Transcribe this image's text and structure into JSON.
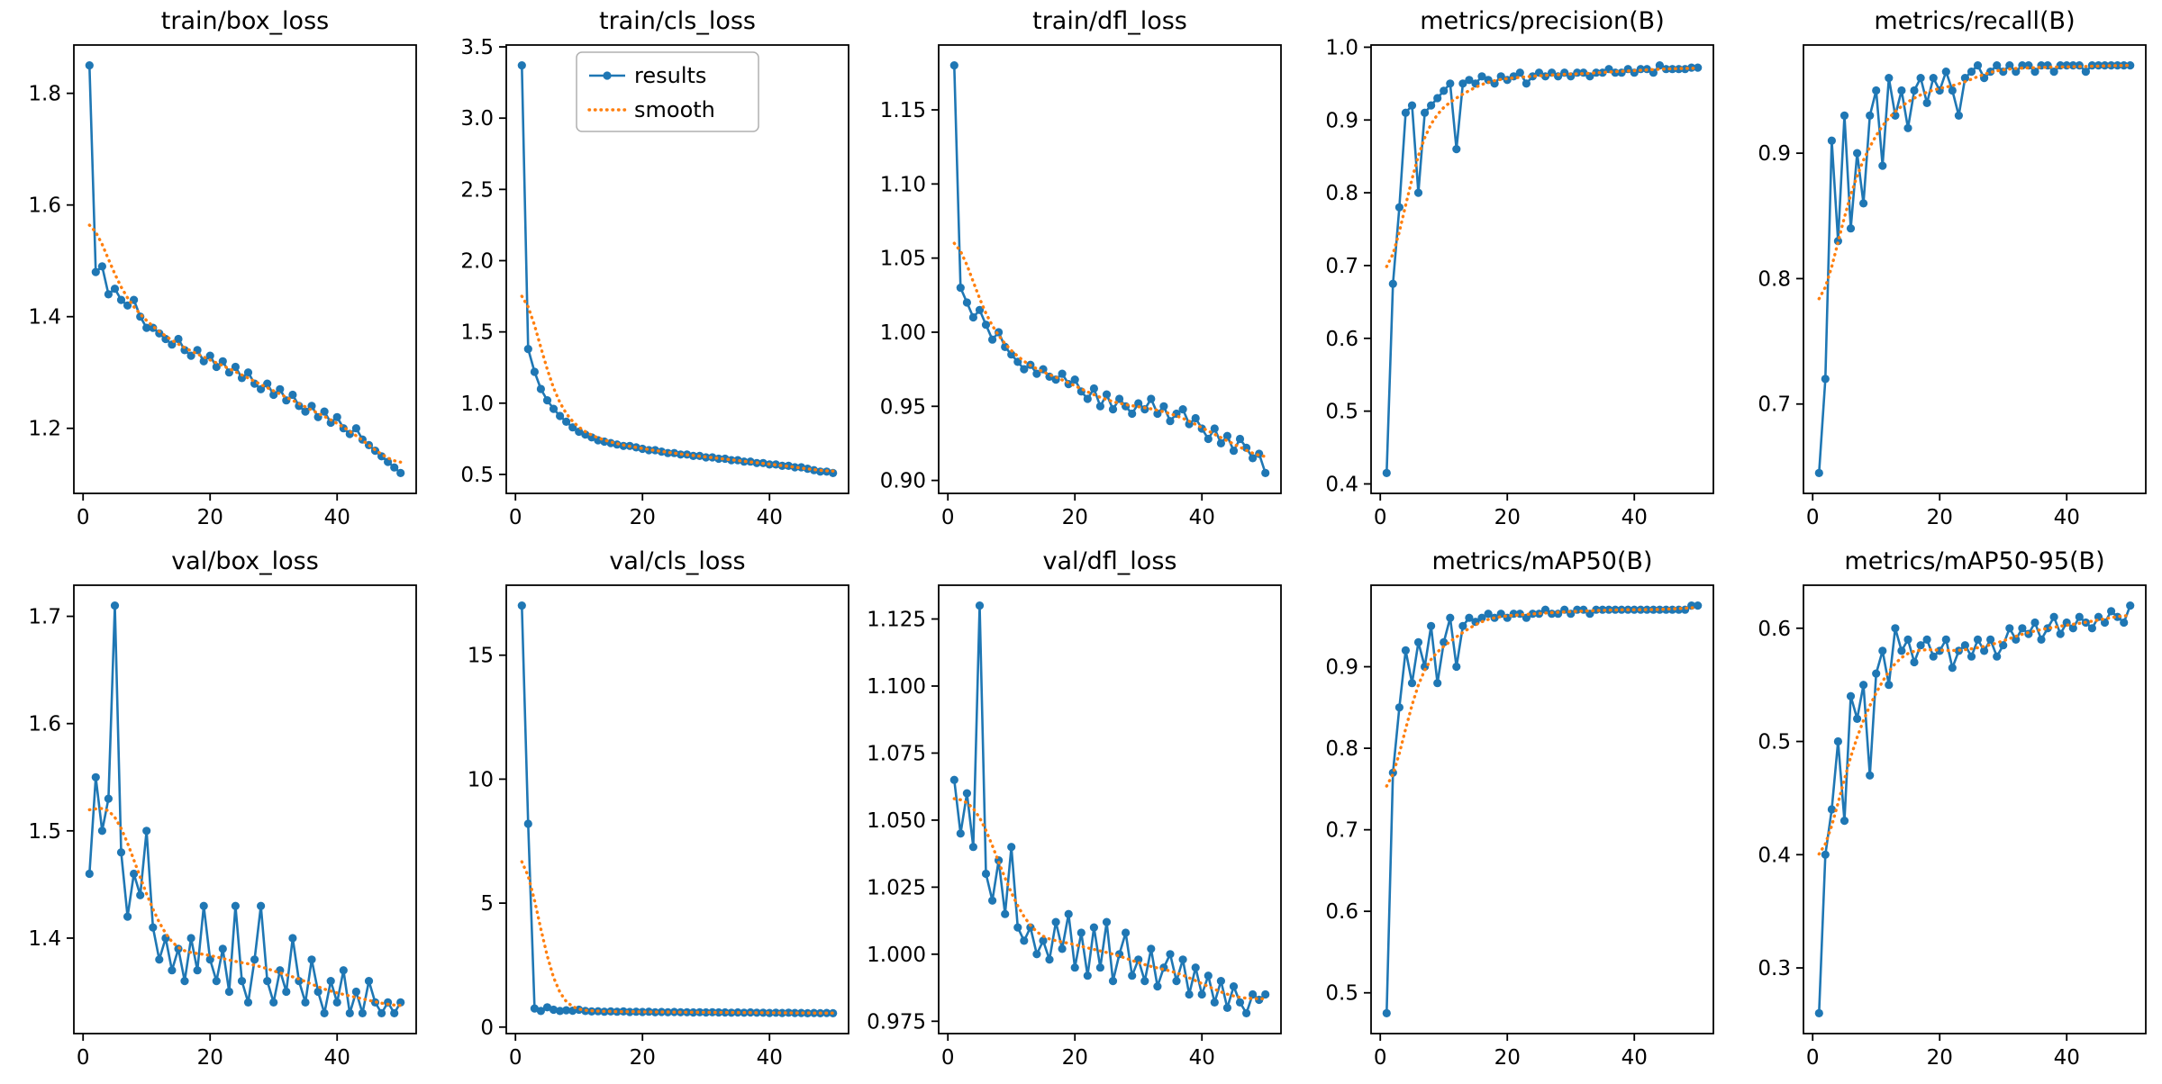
{
  "figure": {
    "background": "#ffffff",
    "grid": {
      "rows": 2,
      "cols": 5
    },
    "colors": {
      "results": "#1f77b4",
      "smooth": "#ff7f0e",
      "spine": "#000000",
      "legend_border": "#b0b0b0"
    },
    "legend_labels": [
      "results",
      "smooth"
    ],
    "smoothing": "gaussian sigma=3 smoothing of results series"
  },
  "chart_data": [
    {
      "type": "line",
      "title": "train/box_loss",
      "legend": false,
      "x": {
        "start": 1,
        "end": 50,
        "ticks": [
          0,
          20,
          40
        ],
        "tick_labels": [
          "0",
          "20",
          "40"
        ]
      },
      "yticks": [
        1.2,
        1.4,
        1.6,
        1.8
      ],
      "ytick_labels": [
        "1.2",
        "1.4",
        "1.6",
        "1.8"
      ],
      "series": [
        {
          "name": "results",
          "style": "solid-with-markers",
          "values": [
            1.85,
            1.48,
            1.49,
            1.44,
            1.45,
            1.43,
            1.42,
            1.43,
            1.4,
            1.38,
            1.38,
            1.37,
            1.36,
            1.35,
            1.36,
            1.34,
            1.33,
            1.34,
            1.32,
            1.33,
            1.31,
            1.32,
            1.3,
            1.31,
            1.29,
            1.3,
            1.28,
            1.27,
            1.28,
            1.26,
            1.27,
            1.25,
            1.26,
            1.24,
            1.23,
            1.24,
            1.22,
            1.23,
            1.21,
            1.22,
            1.2,
            1.19,
            1.2,
            1.18,
            1.17,
            1.16,
            1.15,
            1.14,
            1.13,
            1.12
          ]
        },
        {
          "name": "smooth",
          "style": "dotted",
          "derived": "gaussian smoothing of results"
        }
      ]
    },
    {
      "type": "line",
      "title": "train/cls_loss",
      "legend": true,
      "x": {
        "start": 1,
        "end": 50,
        "ticks": [
          0,
          20,
          40
        ],
        "tick_labels": [
          "0",
          "20",
          "40"
        ]
      },
      "yticks": [
        0.5,
        1.0,
        1.5,
        2.0,
        2.5,
        3.0,
        3.5
      ],
      "ytick_labels": [
        "0.5",
        "1.0",
        "1.5",
        "2.0",
        "2.5",
        "3.0",
        "3.5"
      ],
      "series": [
        {
          "name": "results",
          "style": "solid-with-markers",
          "values": [
            3.37,
            1.38,
            1.22,
            1.1,
            1.02,
            0.96,
            0.91,
            0.87,
            0.83,
            0.8,
            0.78,
            0.76,
            0.74,
            0.73,
            0.72,
            0.71,
            0.7,
            0.7,
            0.69,
            0.68,
            0.67,
            0.67,
            0.66,
            0.65,
            0.65,
            0.64,
            0.64,
            0.63,
            0.63,
            0.62,
            0.62,
            0.61,
            0.61,
            0.6,
            0.6,
            0.59,
            0.59,
            0.58,
            0.58,
            0.57,
            0.57,
            0.56,
            0.56,
            0.55,
            0.55,
            0.54,
            0.53,
            0.52,
            0.52,
            0.51
          ]
        },
        {
          "name": "smooth",
          "style": "dotted",
          "derived": "gaussian smoothing of results"
        }
      ]
    },
    {
      "type": "line",
      "title": "train/dfl_loss",
      "legend": false,
      "x": {
        "start": 1,
        "end": 50,
        "ticks": [
          0,
          20,
          40
        ],
        "tick_labels": [
          "0",
          "20",
          "40"
        ]
      },
      "yticks": [
        0.9,
        0.95,
        1.0,
        1.05,
        1.1,
        1.15
      ],
      "ytick_labels": [
        "0.90",
        "0.95",
        "1.00",
        "1.05",
        "1.10",
        "1.15"
      ],
      "series": [
        {
          "name": "results",
          "style": "solid-with-markers",
          "values": [
            1.18,
            1.03,
            1.02,
            1.01,
            1.015,
            1.005,
            0.995,
            1.0,
            0.99,
            0.985,
            0.98,
            0.975,
            0.978,
            0.972,
            0.975,
            0.97,
            0.968,
            0.972,
            0.965,
            0.968,
            0.96,
            0.955,
            0.962,
            0.95,
            0.958,
            0.948,
            0.955,
            0.95,
            0.945,
            0.952,
            0.948,
            0.955,
            0.945,
            0.95,
            0.94,
            0.945,
            0.948,
            0.938,
            0.942,
            0.935,
            0.928,
            0.935,
            0.925,
            0.93,
            0.92,
            0.928,
            0.922,
            0.915,
            0.918,
            0.905
          ]
        },
        {
          "name": "smooth",
          "style": "dotted",
          "derived": "gaussian smoothing of results"
        }
      ]
    },
    {
      "type": "line",
      "title": "metrics/precision(B)",
      "legend": false,
      "x": {
        "start": 1,
        "end": 50,
        "ticks": [
          0,
          20,
          40
        ],
        "tick_labels": [
          "0",
          "20",
          "40"
        ]
      },
      "yticks": [
        0.4,
        0.5,
        0.6,
        0.7,
        0.8,
        0.9,
        1.0
      ],
      "ytick_labels": [
        "0.4",
        "0.5",
        "0.6",
        "0.7",
        "0.8",
        "0.9",
        "1.0"
      ],
      "series": [
        {
          "name": "results",
          "style": "solid-with-markers",
          "values": [
            0.415,
            0.675,
            0.78,
            0.91,
            0.92,
            0.8,
            0.91,
            0.92,
            0.93,
            0.94,
            0.95,
            0.86,
            0.95,
            0.955,
            0.95,
            0.96,
            0.955,
            0.95,
            0.96,
            0.955,
            0.96,
            0.965,
            0.95,
            0.96,
            0.965,
            0.96,
            0.965,
            0.96,
            0.965,
            0.96,
            0.965,
            0.965,
            0.96,
            0.965,
            0.965,
            0.97,
            0.965,
            0.965,
            0.97,
            0.965,
            0.97,
            0.97,
            0.965,
            0.975,
            0.97,
            0.97,
            0.97,
            0.97,
            0.972,
            0.972
          ]
        },
        {
          "name": "smooth",
          "style": "dotted",
          "derived": "gaussian smoothing of results"
        }
      ]
    },
    {
      "type": "line",
      "title": "metrics/recall(B)",
      "legend": false,
      "x": {
        "start": 1,
        "end": 50,
        "ticks": [
          0,
          20,
          40
        ],
        "tick_labels": [
          "0",
          "20",
          "40"
        ]
      },
      "yticks": [
        0.7,
        0.8,
        0.9
      ],
      "ytick_labels": [
        "0.7",
        "0.8",
        "0.9"
      ],
      "series": [
        {
          "name": "results",
          "style": "solid-with-markers",
          "values": [
            0.645,
            0.72,
            0.91,
            0.83,
            0.93,
            0.84,
            0.9,
            0.86,
            0.93,
            0.95,
            0.89,
            0.96,
            0.93,
            0.95,
            0.92,
            0.95,
            0.96,
            0.94,
            0.96,
            0.95,
            0.965,
            0.95,
            0.93,
            0.96,
            0.965,
            0.97,
            0.96,
            0.965,
            0.97,
            0.965,
            0.97,
            0.965,
            0.97,
            0.97,
            0.965,
            0.97,
            0.97,
            0.965,
            0.97,
            0.97,
            0.97,
            0.97,
            0.965,
            0.97,
            0.97,
            0.97,
            0.97,
            0.97,
            0.97,
            0.97
          ]
        },
        {
          "name": "smooth",
          "style": "dotted",
          "derived": "gaussian smoothing of results"
        }
      ]
    },
    {
      "type": "line",
      "title": "val/box_loss",
      "legend": false,
      "x": {
        "start": 1,
        "end": 50,
        "ticks": [
          0,
          20,
          40
        ],
        "tick_labels": [
          "0",
          "20",
          "40"
        ]
      },
      "yticks": [
        1.4,
        1.5,
        1.6,
        1.7
      ],
      "ytick_labels": [
        "1.4",
        "1.5",
        "1.6",
        "1.7"
      ],
      "series": [
        {
          "name": "results",
          "style": "solid-with-markers",
          "values": [
            1.46,
            1.55,
            1.5,
            1.53,
            1.71,
            1.48,
            1.42,
            1.46,
            1.44,
            1.5,
            1.41,
            1.38,
            1.4,
            1.37,
            1.39,
            1.36,
            1.4,
            1.37,
            1.43,
            1.38,
            1.36,
            1.39,
            1.35,
            1.43,
            1.36,
            1.34,
            1.38,
            1.43,
            1.36,
            1.34,
            1.37,
            1.35,
            1.4,
            1.36,
            1.34,
            1.38,
            1.35,
            1.33,
            1.36,
            1.34,
            1.37,
            1.33,
            1.35,
            1.33,
            1.36,
            1.34,
            1.33,
            1.34,
            1.33,
            1.34
          ]
        },
        {
          "name": "smooth",
          "style": "dotted",
          "derived": "gaussian smoothing of results"
        }
      ]
    },
    {
      "type": "line",
      "title": "val/cls_loss",
      "legend": false,
      "x": {
        "start": 1,
        "end": 50,
        "ticks": [
          0,
          20,
          40
        ],
        "tick_labels": [
          "0",
          "20",
          "40"
        ]
      },
      "yticks": [
        0,
        5,
        10,
        15
      ],
      "ytick_labels": [
        "0",
        "5",
        "10",
        "15"
      ],
      "series": [
        {
          "name": "results",
          "style": "solid-with-markers",
          "values": [
            17.0,
            8.2,
            0.75,
            0.65,
            0.8,
            0.7,
            0.65,
            0.68,
            0.66,
            0.7,
            0.65,
            0.63,
            0.64,
            0.62,
            0.63,
            0.62,
            0.63,
            0.61,
            0.62,
            0.61,
            0.62,
            0.6,
            0.61,
            0.6,
            0.61,
            0.6,
            0.6,
            0.59,
            0.6,
            0.59,
            0.6,
            0.59,
            0.59,
            0.58,
            0.59,
            0.58,
            0.59,
            0.58,
            0.58,
            0.57,
            0.58,
            0.57,
            0.58,
            0.57,
            0.57,
            0.56,
            0.57,
            0.56,
            0.57,
            0.56
          ]
        },
        {
          "name": "smooth",
          "style": "dotted",
          "derived": "gaussian smoothing of results"
        }
      ]
    },
    {
      "type": "line",
      "title": "val/dfl_loss",
      "legend": false,
      "x": {
        "start": 1,
        "end": 50,
        "ticks": [
          0,
          20,
          40
        ],
        "tick_labels": [
          "0",
          "20",
          "40"
        ]
      },
      "yticks": [
        0.975,
        1.0,
        1.025,
        1.05,
        1.075,
        1.1,
        1.125
      ],
      "ytick_labels": [
        "0.975",
        "1.000",
        "1.025",
        "1.050",
        "1.075",
        "1.100",
        "1.125"
      ],
      "series": [
        {
          "name": "results",
          "style": "solid-with-markers",
          "values": [
            1.065,
            1.045,
            1.06,
            1.04,
            1.13,
            1.03,
            1.02,
            1.035,
            1.015,
            1.04,
            1.01,
            1.005,
            1.01,
            1.0,
            1.005,
            0.998,
            1.012,
            1.002,
            1.015,
            0.995,
            1.008,
            0.992,
            1.01,
            0.995,
            1.012,
            0.99,
            1.0,
            1.008,
            0.992,
            0.998,
            0.99,
            1.002,
            0.988,
            0.995,
            1.0,
            0.99,
            0.998,
            0.985,
            0.995,
            0.985,
            0.992,
            0.982,
            0.99,
            0.98,
            0.988,
            0.982,
            0.978,
            0.985,
            0.983,
            0.985
          ]
        },
        {
          "name": "smooth",
          "style": "dotted",
          "derived": "gaussian smoothing of results"
        }
      ]
    },
    {
      "type": "line",
      "title": "metrics/mAP50(B)",
      "legend": false,
      "x": {
        "start": 1,
        "end": 50,
        "ticks": [
          0,
          20,
          40
        ],
        "tick_labels": [
          "0",
          "20",
          "40"
        ]
      },
      "yticks": [
        0.5,
        0.6,
        0.7,
        0.8,
        0.9
      ],
      "ytick_labels": [
        "0.5",
        "0.6",
        "0.7",
        "0.8",
        "0.9"
      ],
      "series": [
        {
          "name": "results",
          "style": "solid-with-markers",
          "values": [
            0.475,
            0.77,
            0.85,
            0.92,
            0.88,
            0.93,
            0.9,
            0.95,
            0.88,
            0.93,
            0.96,
            0.9,
            0.95,
            0.96,
            0.955,
            0.96,
            0.965,
            0.96,
            0.965,
            0.96,
            0.965,
            0.965,
            0.96,
            0.965,
            0.965,
            0.97,
            0.965,
            0.965,
            0.97,
            0.965,
            0.97,
            0.97,
            0.965,
            0.97,
            0.97,
            0.97,
            0.97,
            0.97,
            0.97,
            0.97,
            0.97,
            0.97,
            0.97,
            0.97,
            0.97,
            0.97,
            0.97,
            0.97,
            0.975,
            0.975
          ]
        },
        {
          "name": "smooth",
          "style": "dotted",
          "derived": "gaussian smoothing of results"
        }
      ]
    },
    {
      "type": "line",
      "title": "metrics/mAP50-95(B)",
      "legend": false,
      "x": {
        "start": 1,
        "end": 50,
        "ticks": [
          0,
          20,
          40
        ],
        "tick_labels": [
          "0",
          "20",
          "40"
        ]
      },
      "yticks": [
        0.3,
        0.4,
        0.5,
        0.6
      ],
      "ytick_labels": [
        "0.3",
        "0.4",
        "0.5",
        "0.6"
      ],
      "series": [
        {
          "name": "results",
          "style": "solid-with-markers",
          "values": [
            0.26,
            0.4,
            0.44,
            0.5,
            0.43,
            0.54,
            0.52,
            0.55,
            0.47,
            0.56,
            0.58,
            0.55,
            0.6,
            0.58,
            0.59,
            0.57,
            0.585,
            0.59,
            0.575,
            0.58,
            0.59,
            0.565,
            0.58,
            0.585,
            0.575,
            0.59,
            0.58,
            0.59,
            0.575,
            0.585,
            0.6,
            0.59,
            0.6,
            0.595,
            0.605,
            0.59,
            0.6,
            0.61,
            0.595,
            0.605,
            0.6,
            0.61,
            0.605,
            0.6,
            0.61,
            0.605,
            0.615,
            0.61,
            0.605,
            0.62
          ]
        },
        {
          "name": "smooth",
          "style": "dotted",
          "derived": "gaussian smoothing of results"
        }
      ]
    }
  ]
}
